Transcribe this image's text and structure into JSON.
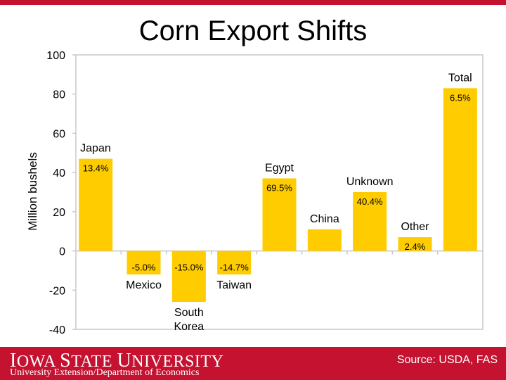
{
  "title": "Corn Export Shifts",
  "footer": {
    "logo_text": "Iowa State University",
    "department": "University Extension/Department of Economics",
    "source": "Source: USDA, FAS"
  },
  "colors": {
    "bar": "#ffcc00",
    "brand_red": "#c41230",
    "axis": "#c8c8c8"
  },
  "chart_data": {
    "type": "bar",
    "title": "Corn Export Shifts",
    "ylabel": "Million bushels",
    "xlabel": "",
    "ylim": [
      -40,
      100
    ],
    "yticks": [
      100,
      80,
      60,
      40,
      20,
      0,
      -20,
      -40
    ],
    "grid": false,
    "categories": [
      "Japan",
      "Mexico",
      "South Korea",
      "Taiwan",
      "Egypt",
      "China",
      "Unknown",
      "Other",
      "Total"
    ],
    "values": [
      47,
      -12,
      -26,
      -12,
      37,
      11,
      30,
      7,
      83
    ],
    "pct_labels": [
      "13.4%",
      "-5.0%",
      "-15.0%",
      "-14.7%",
      "69.5%",
      "",
      "40.4%",
      "2.4%",
      "6.5%"
    ]
  }
}
